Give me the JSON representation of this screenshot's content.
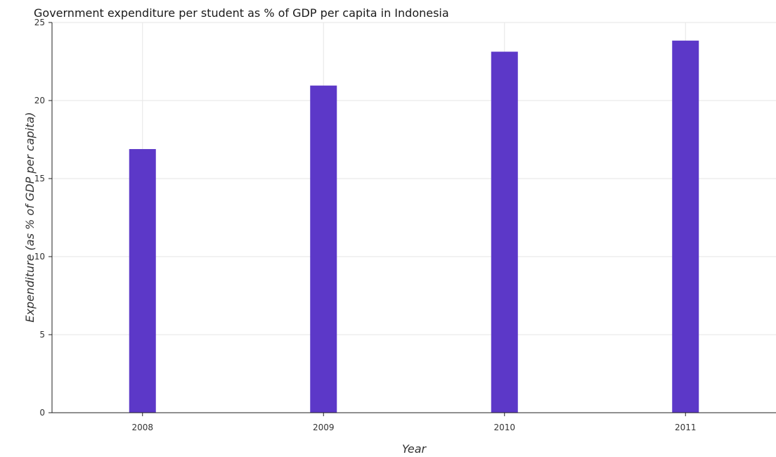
{
  "chart_data": {
    "type": "bar",
    "title": "Government expenditure per student as % of GDP per capita in Indonesia",
    "xlabel": "Year",
    "ylabel": "Expenditure (as % of GDP per capita)",
    "categories": [
      "2008",
      "2009",
      "2010",
      "2011"
    ],
    "values": [
      16.89,
      20.96,
      23.13,
      23.84
    ],
    "ylim": [
      0,
      25
    ],
    "yticks": [
      0,
      5,
      10,
      15,
      20,
      25
    ],
    "grid": true,
    "bar_color": "#5c38c8"
  }
}
